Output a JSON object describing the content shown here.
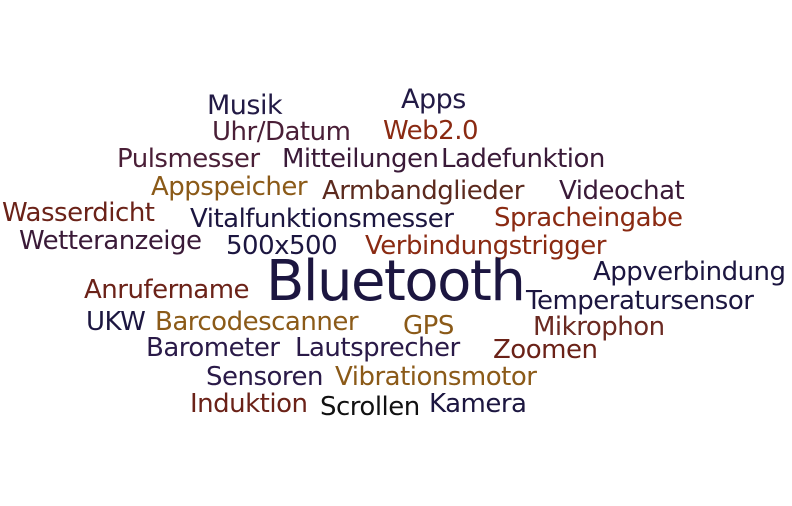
{
  "colors": {
    "navy": "#1c1640",
    "plum": "#4a1f37",
    "rust": "#8a2a12",
    "ochre": "#8b5a18",
    "brown": "#5c2a1e",
    "black": "#111111",
    "background": "#ffffff"
  },
  "words": [
    {
      "id": "musik",
      "text": "Musik",
      "color": "#221a45"
    },
    {
      "id": "apps",
      "text": "Apps",
      "color": "#221a45"
    },
    {
      "id": "uhr",
      "text": "Uhr/Datum",
      "color": "#4a1f37"
    },
    {
      "id": "web",
      "text": "Web2.0",
      "color": "#8a2a12"
    },
    {
      "id": "puls",
      "text": "Pulsmesser",
      "color": "#4a1f37"
    },
    {
      "id": "mitt",
      "text": "Mitteilungen",
      "color": "#3a1a38"
    },
    {
      "id": "lade",
      "text": "Ladefunktion",
      "color": "#3a1a38"
    },
    {
      "id": "appsp",
      "text": "Appspeicher",
      "color": "#8b5a18"
    },
    {
      "id": "armb",
      "text": "Armbandglieder",
      "color": "#5c2a1e"
    },
    {
      "id": "video",
      "text": "Videochat",
      "color": "#3a1a38"
    },
    {
      "id": "wasser",
      "text": "Wasserdicht",
      "color": "#6b2218"
    },
    {
      "id": "vital",
      "text": "Vitalfunktionsmesser",
      "color": "#1c1640"
    },
    {
      "id": "sprach",
      "text": "Spracheingabe",
      "color": "#8a2a12"
    },
    {
      "id": "wetter",
      "text": "Wetteranzeige",
      "color": "#3a1a38"
    },
    {
      "id": "res",
      "text": "500x500",
      "color": "#1c1640"
    },
    {
      "id": "verb",
      "text": "Verbindungstrigger",
      "color": "#8a2a12"
    },
    {
      "id": "bt",
      "text": "Bluetooth",
      "color": "#1c1640"
    },
    {
      "id": "appv",
      "text": "Appverbindung",
      "color": "#1c1640"
    },
    {
      "id": "anruf",
      "text": "Anrufername",
      "color": "#6b2218"
    },
    {
      "id": "temp",
      "text": "Temperatursensor",
      "color": "#1c1640"
    },
    {
      "id": "ukw",
      "text": "UKW",
      "color": "#1c1640"
    },
    {
      "id": "barc",
      "text": "Barcodescanner",
      "color": "#8b5a18"
    },
    {
      "id": "gps",
      "text": "GPS",
      "color": "#8b5a18"
    },
    {
      "id": "mikro",
      "text": "Mikrophon",
      "color": "#6b2a22"
    },
    {
      "id": "baro",
      "text": "Barometer",
      "color": "#2a1a48"
    },
    {
      "id": "laut",
      "text": "Lautsprecher",
      "color": "#2a1a48"
    },
    {
      "id": "zoom",
      "text": "Zoomen",
      "color": "#6b2218"
    },
    {
      "id": "sens",
      "text": "Sensoren",
      "color": "#2a1a48"
    },
    {
      "id": "vibr",
      "text": "Vibrationsmotor",
      "color": "#8b5a18"
    },
    {
      "id": "ind",
      "text": "Induktion",
      "color": "#6b2218"
    },
    {
      "id": "scroll",
      "text": "Scrollen",
      "color": "#111111"
    },
    {
      "id": "kam",
      "text": "Kamera",
      "color": "#1c1640"
    }
  ]
}
